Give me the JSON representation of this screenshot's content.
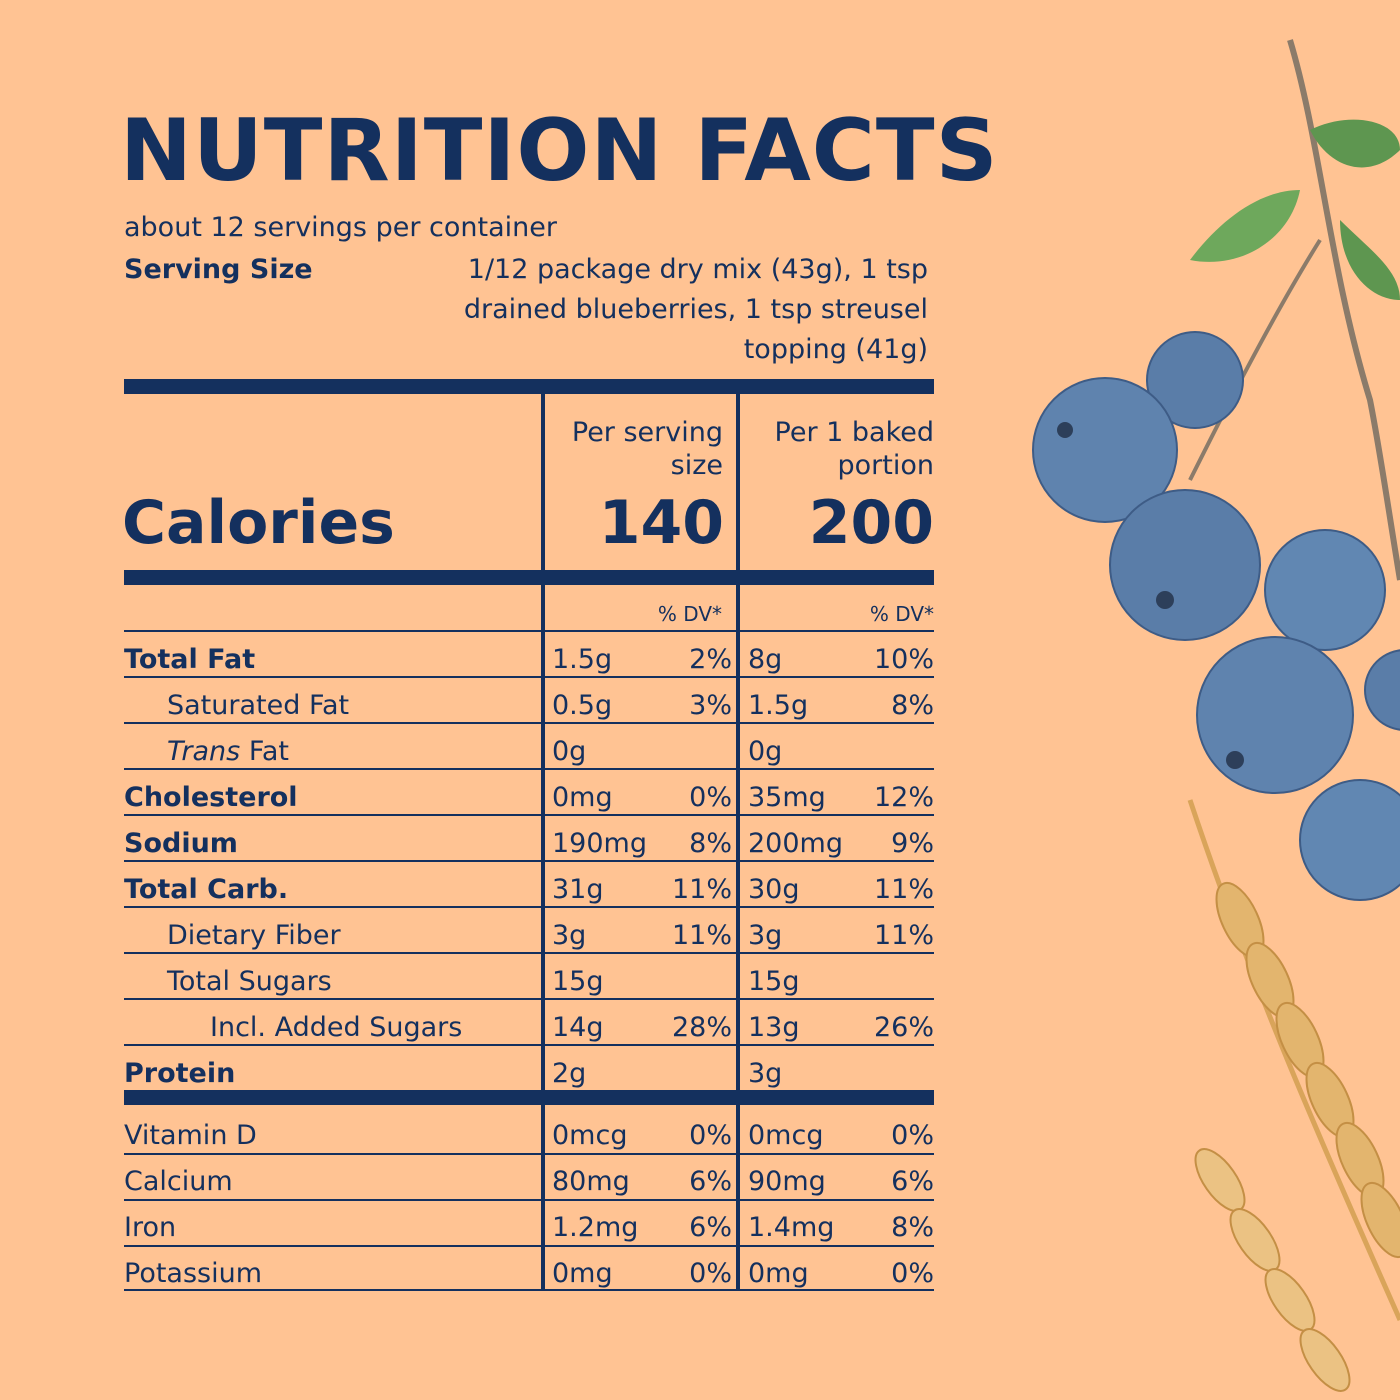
{
  "label": {
    "title": "NUTRITION FACTS",
    "servings_per_container": "about 12 servings per container",
    "serving_size_label": "Serving Size",
    "serving_size_lines": [
      "1/12 package dry mix (43g), 1 tsp",
      "drained blueberries, 1 tsp streusel",
      "topping (41g)"
    ],
    "calories_label": "Calories",
    "columns": [
      {
        "header_lines": [
          "Per serving",
          "size"
        ],
        "calories": "140",
        "dv_label": "% DV*"
      },
      {
        "header_lines": [
          "Per 1 baked",
          "portion"
        ],
        "calories": "200",
        "dv_label": "% DV*"
      }
    ],
    "nutrients": [
      {
        "name": "Total Fat",
        "style": "bold",
        "a": "1.5g",
        "a_dv": "2%",
        "b": "8g",
        "b_dv": "10%"
      },
      {
        "name": "Saturated Fat",
        "style": "indent1",
        "a": "0.5g",
        "a_dv": "3%",
        "b": "1.5g",
        "b_dv": "8%"
      },
      {
        "name_italic": "Trans",
        "name": " Fat",
        "style": "indent1",
        "a": "0g",
        "a_dv": "",
        "b": "0g",
        "b_dv": ""
      },
      {
        "name": "Cholesterol",
        "style": "bold",
        "a": "0mg",
        "a_dv": "0%",
        "b": "35mg",
        "b_dv": "12%"
      },
      {
        "name": "Sodium",
        "style": "bold",
        "a": "190mg",
        "a_dv": "8%",
        "b": "200mg",
        "b_dv": "9%"
      },
      {
        "name": "Total Carb.",
        "style": "bold",
        "a": "31g",
        "a_dv": "11%",
        "b": "30g",
        "b_dv": "11%"
      },
      {
        "name": "Dietary Fiber",
        "style": "indent1",
        "a": "3g",
        "a_dv": "11%",
        "b": "3g",
        "b_dv": "11%"
      },
      {
        "name": "Total Sugars",
        "style": "indent1",
        "a": "15g",
        "a_dv": "",
        "b": "15g",
        "b_dv": ""
      },
      {
        "name": "Incl. Added Sugars",
        "style": "indent2",
        "a": "14g",
        "a_dv": "28%",
        "b": "13g",
        "b_dv": "26%"
      },
      {
        "name": "Protein",
        "style": "bold",
        "a": "2g",
        "a_dv": "",
        "b": "3g",
        "b_dv": ""
      }
    ],
    "vitamins": [
      {
        "name": "Vitamin D",
        "a": "0mcg",
        "a_dv": "0%",
        "b": "0mcg",
        "b_dv": "0%"
      },
      {
        "name": "Calcium",
        "a": "80mg",
        "a_dv": "6%",
        "b": "90mg",
        "b_dv": "6%"
      },
      {
        "name": "Iron",
        "a": "1.2mg",
        "a_dv": "6%",
        "b": "1.4mg",
        "b_dv": "8%"
      },
      {
        "name": "Potassium",
        "a": "0mg",
        "a_dv": "0%",
        "b": "0mg",
        "b_dv": "0%"
      }
    ]
  },
  "colors": {
    "background": "#FFC393",
    "ink": "#14305E",
    "blueberry": "#5A7DA8",
    "wheat": "#E3B56E",
    "leaf": "#5E9650"
  }
}
